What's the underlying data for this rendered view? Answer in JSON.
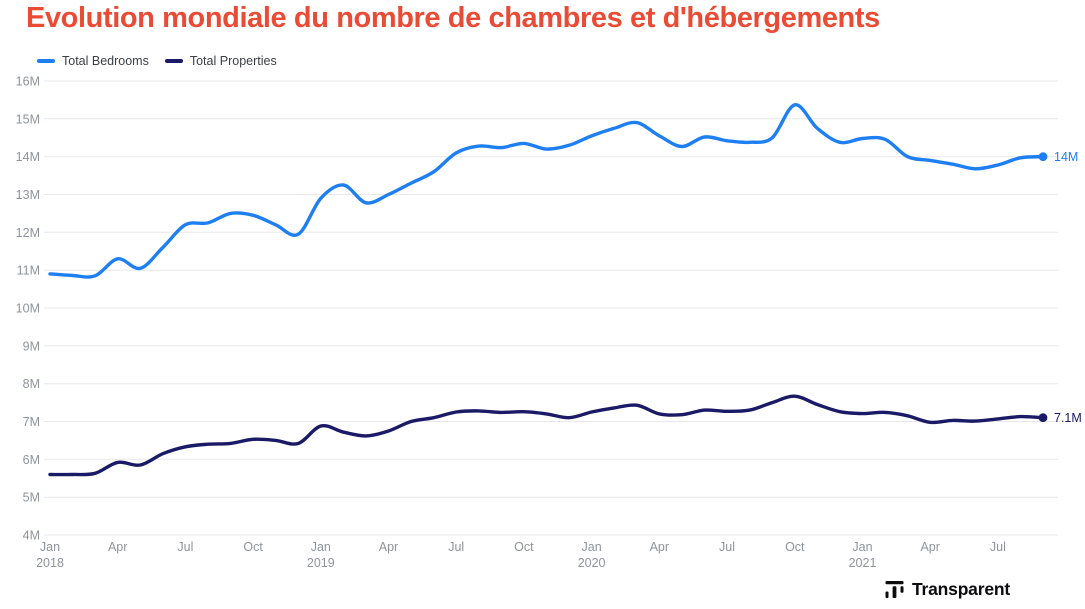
{
  "title": "Evolution mondiale du nombre de chambres et d'hébergements",
  "title_color": "#EA4B35",
  "legend": {
    "position": "top-left",
    "items": [
      {
        "label": "Total Bedrooms",
        "color": "#1E7FF2"
      },
      {
        "label": "Total Properties",
        "color": "#1A1A66"
      }
    ]
  },
  "footer": {
    "brand": "Transparent"
  },
  "chart_data": {
    "type": "line",
    "title": "Evolution mondiale du nombre de chambres et d'hébergements",
    "grid": "horizontal",
    "legend_position": "top-left",
    "ylim_millions": [
      4,
      16
    ],
    "yticks": [
      "4M",
      "5M",
      "6M",
      "7M",
      "8M",
      "9M",
      "10M",
      "11M",
      "12M",
      "13M",
      "14M",
      "15M",
      "16M"
    ],
    "x_months": [
      "Jan 2018",
      "Feb 2018",
      "Mar 2018",
      "Apr 2018",
      "May 2018",
      "Jun 2018",
      "Jul 2018",
      "Aug 2018",
      "Sep 2018",
      "Oct 2018",
      "Nov 2018",
      "Dec 2018",
      "Jan 2019",
      "Feb 2019",
      "Mar 2019",
      "Apr 2019",
      "May 2019",
      "Jun 2019",
      "Jul 2019",
      "Aug 2019",
      "Sep 2019",
      "Oct 2019",
      "Nov 2019",
      "Dec 2019",
      "Jan 2020",
      "Feb 2020",
      "Mar 2020",
      "Apr 2020",
      "May 2020",
      "Jun 2020",
      "Jul 2020",
      "Aug 2020",
      "Sep 2020",
      "Oct 2020",
      "Nov 2020",
      "Dec 2020",
      "Jan 2021",
      "Feb 2021",
      "Mar 2021",
      "Apr 2021",
      "May 2021",
      "Jun 2021",
      "Jul 2021",
      "Aug 2021",
      "Sep 2021"
    ],
    "xticks": [
      {
        "i": 0,
        "label": "Jan",
        "year": "2018"
      },
      {
        "i": 3,
        "label": "Apr"
      },
      {
        "i": 6,
        "label": "Jul"
      },
      {
        "i": 9,
        "label": "Oct"
      },
      {
        "i": 12,
        "label": "Jan",
        "year": "2019"
      },
      {
        "i": 15,
        "label": "Apr"
      },
      {
        "i": 18,
        "label": "Jul"
      },
      {
        "i": 21,
        "label": "Oct"
      },
      {
        "i": 24,
        "label": "Jan",
        "year": "2020"
      },
      {
        "i": 27,
        "label": "Apr"
      },
      {
        "i": 30,
        "label": "Jul"
      },
      {
        "i": 33,
        "label": "Oct"
      },
      {
        "i": 36,
        "label": "Jan",
        "year": "2021"
      },
      {
        "i": 39,
        "label": "Apr"
      },
      {
        "i": 42,
        "label": "Jul"
      }
    ],
    "series": [
      {
        "id": "total-bedrooms",
        "name": "Total Bedrooms",
        "color": "#1E7FF2",
        "end_label": "14M",
        "unit": "millions",
        "values": [
          10.9,
          10.86,
          10.85,
          11.3,
          11.05,
          11.6,
          12.2,
          12.25,
          12.5,
          12.45,
          12.2,
          11.95,
          12.9,
          13.25,
          12.78,
          13.0,
          13.3,
          13.6,
          14.1,
          14.28,
          14.24,
          14.35,
          14.2,
          14.3,
          14.55,
          14.75,
          14.9,
          14.55,
          14.27,
          14.52,
          14.42,
          14.38,
          14.5,
          15.37,
          14.75,
          14.38,
          14.48,
          14.46,
          14.0,
          13.9,
          13.8,
          13.68,
          13.78,
          13.97,
          14.0
        ]
      },
      {
        "id": "total-properties",
        "name": "Total Properties",
        "color": "#1A1A66",
        "end_label": "7.1M",
        "unit": "millions",
        "values": [
          5.6,
          5.6,
          5.63,
          5.92,
          5.85,
          6.15,
          6.33,
          6.4,
          6.42,
          6.53,
          6.5,
          6.42,
          6.88,
          6.72,
          6.62,
          6.75,
          7.0,
          7.1,
          7.25,
          7.28,
          7.24,
          7.26,
          7.2,
          7.1,
          7.25,
          7.36,
          7.43,
          7.2,
          7.18,
          7.3,
          7.27,
          7.3,
          7.5,
          7.67,
          7.45,
          7.26,
          7.21,
          7.24,
          7.15,
          6.98,
          7.03,
          7.01,
          7.07,
          7.13,
          7.1
        ]
      }
    ]
  }
}
